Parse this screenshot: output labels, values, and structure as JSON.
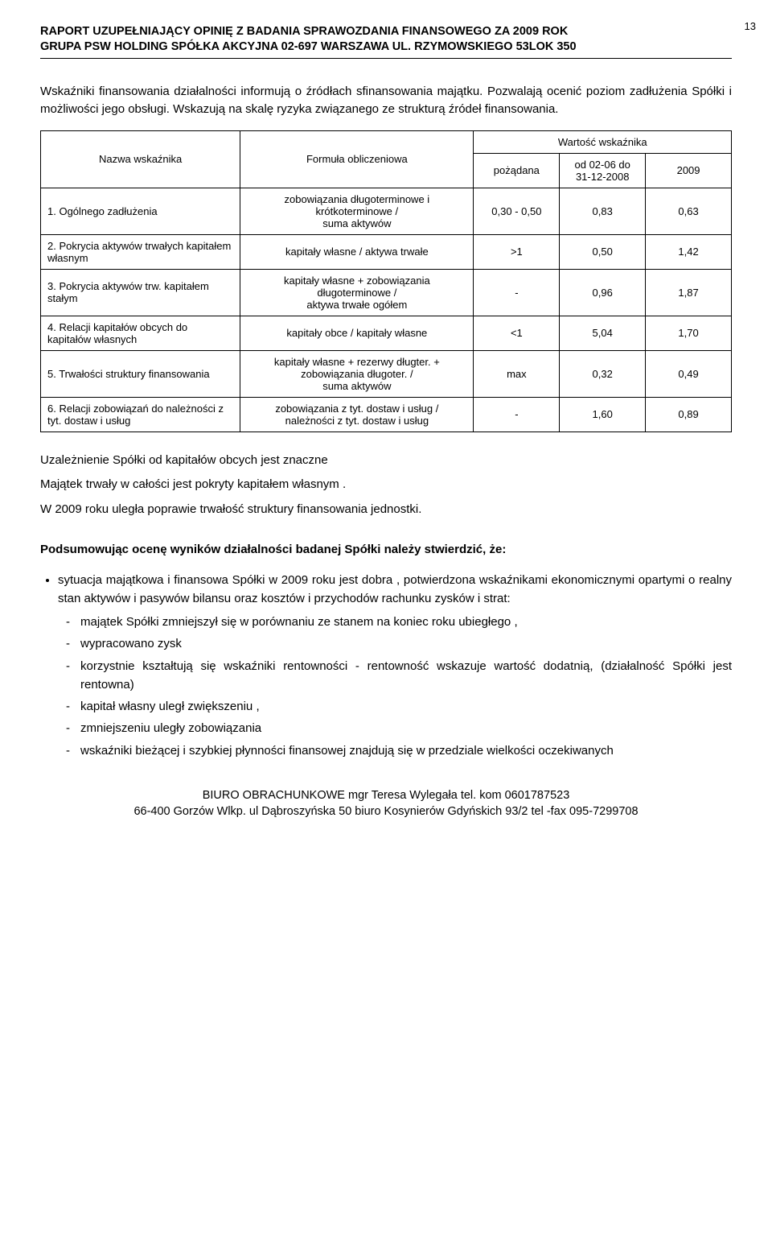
{
  "page_number": "13",
  "header": {
    "line1": "RAPORT  UZUPEŁNIAJĄCY  OPINIĘ  Z BADANIA  SPRAWOZDANIA  FINANSOWEGO  ZA 2009   ROK",
    "line2": "GRUPA PSW HOLDING SPÓŁKA AKCYJNA 02-697 WARSZAWA UL. RZYMOWSKIEGO 53LOK 350"
  },
  "intro": "Wskaźniki finansowania działalności   informują   o   źródłach sfinansowania majątku. Pozwalają ocenić poziom zadłużenia Spółki i możliwości jego obsługi. Wskazują na skalę ryzyka związanego ze strukturą źródeł finansowania.",
  "table": {
    "headers": {
      "name": "Nazwa  wskaźnika",
      "formula": "Formuła  obliczeniowa",
      "value_group": "Wartość  wskaźnika",
      "desired": "pożądana",
      "period": "od 02-06 do 31-12-2008",
      "year": "2009"
    },
    "rows": [
      {
        "name": "1. Ogólnego  zadłużenia",
        "formula": "zobowiązania  długoterminowe  i krótkoterminowe /\nsuma  aktywów",
        "desired": "0,30 - 0,50",
        "period": "0,83",
        "year": "0,63"
      },
      {
        "name": "2. Pokrycia aktywów trwałych kapitałem własnym",
        "formula": "kapitały  własne / aktywa  trwałe",
        "desired": ">1",
        "period": "0,50",
        "year": "1,42"
      },
      {
        "name": "3. Pokrycia aktywów trw. kapitałem stałym",
        "formula": "kapitały  własne + zobowiązania długoterminowe /\naktywa  trwałe  ogółem",
        "desired": "-",
        "period": "0,96",
        "year": "1,87"
      },
      {
        "name": "4. Relacji kapitałów obcych do kapitałów  własnych",
        "formula": "kapitały  obce / kapitały  własne",
        "desired": "<1",
        "period": "5,04",
        "year": "1,70"
      },
      {
        "name": "5. Trwałości struktury finansowania",
        "formula": "kapitały  własne + rezerwy  długter. + zobowiązania  długoter. /\nsuma aktywów",
        "desired": "max",
        "period": "0,32",
        "year": "0,49"
      },
      {
        "name": "6. Relacji zobowiązań do należności z tyt. dostaw i usług",
        "formula": "zobowiązania z tyt. dostaw i usług /\nnależności z tyt. dostaw i usług",
        "desired": "-",
        "period": "1,60",
        "year": "0,89"
      }
    ]
  },
  "conclusion_lines": [
    "Uzależnienie  Spółki od   kapitałów  obcych  jest   znaczne",
    "Majątek trwały w całości jest pokryty kapitałem własnym .",
    "W 2009 roku   uległa  poprawie trwałość struktury  finansowania  jednostki."
  ],
  "summary_heading": "Podsumowując  ocenę  wyników  działalności  badanej Spółki należy  stwierdzić, że:",
  "bullet_intro": "sytuacja  majątkowa   i  finansowa  Spółki w 2009 roku  jest  dobra      ,    potwierdzona wskaźnikami ekonomicznymi    opartymi  o    realny    stan    aktywów    i    pasywów    bilansu    oraz    kosztów i przychodów  rachunku  zysków  i strat:",
  "dash_items": [
    "majątek Spółki zmniejszył się  w porównaniu ze stanem na koniec roku ubiegłego ,",
    "wypracowano zysk",
    "korzystnie  kształtują  się  wskaźniki  rentowności    -  rentowność  wskazuje  wartość  dodatnią, (działalność  Spółki jest   rentowna)",
    "kapitał własny uległ zwiększeniu ,",
    "zmniejszeniu uległy zobowiązania",
    "wskaźniki   bieżącej  i  szybkiej  płynności   finansowej    znajdują  się  w  przedziale  wielkości oczekiwanych"
  ],
  "footer": {
    "line1": "BIURO  OBRACHUNKOWE  mgr   Teresa   Wylegała   tel.  kom  0601787523",
    "line2": "66-400  Gorzów  Wlkp.  ul Dąbroszyńska 50  biuro Kosynierów Gdyńskich 93/2 tel  -fax 095-7299708"
  }
}
